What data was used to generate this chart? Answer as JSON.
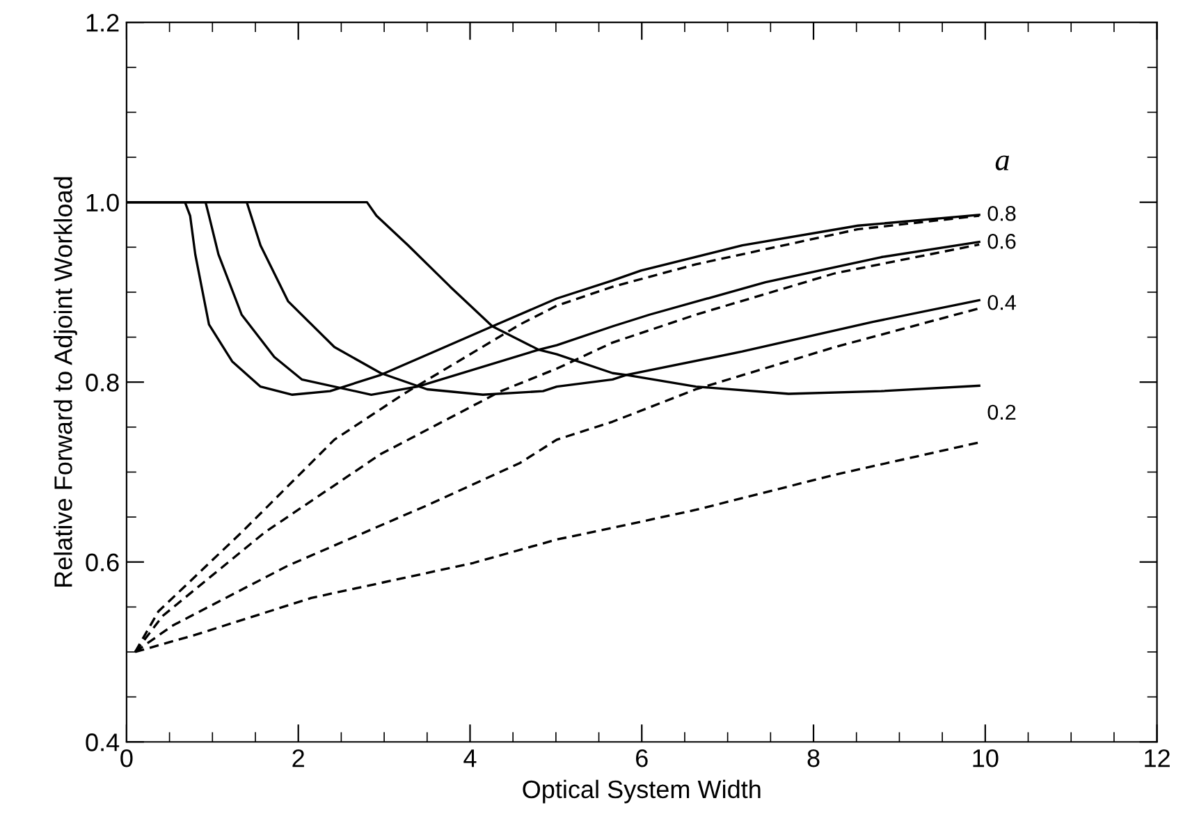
{
  "chart_data": {
    "type": "line",
    "xlabel": "Optical System Width",
    "ylabel": "Relative Forward to Adjoint Workload",
    "xlim": [
      0,
      12
    ],
    "ylim": [
      0.4,
      1.2
    ],
    "xticks": [
      0,
      2,
      4,
      6,
      8,
      10,
      12
    ],
    "yticks": [
      0.4,
      0.6,
      0.8,
      {
        "value": 1.0,
        "label": "1.0"
      },
      1.2
    ],
    "grid": false,
    "legend": false,
    "marker": "none",
    "series": [
      {
        "color": "#000000",
        "line_style": "solid",
        "x": [
          0,
          0.68,
          0.74,
          0.8,
          0.96,
          1.23,
          1.56,
          1.93,
          2.37,
          2.96,
          4.26,
          5.01,
          5.66,
          5.99,
          7.17,
          8.52,
          9.93
        ],
        "values": [
          1.0,
          1.0,
          0.985,
          0.942,
          0.864,
          0.823,
          0.795,
          0.786,
          0.79,
          0.808,
          0.862,
          0.893,
          0.913,
          0.924,
          0.952,
          0.974,
          0.986
        ]
      },
      {
        "color": "#000000",
        "line_style": "solid",
        "x": [
          0,
          0.92,
          0.96,
          1.07,
          1.34,
          1.72,
          2.04,
          2.85,
          3.39,
          4.8,
          5.01,
          5.66,
          6.09,
          7.44,
          8.79,
          9.93
        ],
        "values": [
          1.0,
          1.0,
          0.985,
          0.942,
          0.875,
          0.828,
          0.803,
          0.786,
          0.795,
          0.836,
          0.841,
          0.862,
          0.875,
          0.911,
          0.939,
          0.956
        ]
      },
      {
        "color": "#000000",
        "line_style": "solid",
        "x": [
          0,
          1.4,
          1.45,
          1.56,
          1.88,
          2.42,
          2.96,
          3.5,
          4.15,
          4.85,
          5.01,
          5.66,
          5.82,
          7.17,
          8.69,
          9.93
        ],
        "values": [
          1.0,
          1.0,
          0.985,
          0.952,
          0.89,
          0.839,
          0.81,
          0.792,
          0.786,
          0.79,
          0.795,
          0.803,
          0.808,
          0.834,
          0.867,
          0.891
        ]
      },
      {
        "color": "#000000",
        "line_style": "solid",
        "x": [
          0,
          2.8,
          2.91,
          3.28,
          3.77,
          4.26,
          4.8,
          5.01,
          5.66,
          5.82,
          6.63,
          7.71,
          8.79,
          9.93
        ],
        "values": [
          1.0,
          1.0,
          0.985,
          0.952,
          0.906,
          0.862,
          0.836,
          0.831,
          0.81,
          0.808,
          0.795,
          0.787,
          0.79,
          0.796
        ]
      },
      {
        "color": "#000000",
        "line_style": "dashed",
        "x": [
          0.1,
          0.37,
          1.34,
          2.42,
          3.23,
          4.58,
          5.01,
          5.66,
          6.63,
          8.52,
          9.93
        ],
        "values": [
          0.5,
          0.545,
          0.633,
          0.736,
          0.787,
          0.864,
          0.885,
          0.906,
          0.931,
          0.97,
          0.985
        ]
      },
      {
        "color": "#000000",
        "line_style": "dashed",
        "x": [
          0.1,
          0.42,
          1.61,
          2.96,
          4.36,
          5.01,
          5.66,
          6.63,
          8.25,
          9.93
        ],
        "values": [
          0.5,
          0.54,
          0.633,
          0.72,
          0.79,
          0.815,
          0.844,
          0.875,
          0.921,
          0.953
        ]
      },
      {
        "color": "#000000",
        "line_style": "dashed",
        "x": [
          0.1,
          0.53,
          1.88,
          3.5,
          4.58,
          5.01,
          5.66,
          6.63,
          8.25,
          9.93
        ],
        "values": [
          0.5,
          0.529,
          0.596,
          0.663,
          0.71,
          0.736,
          0.756,
          0.792,
          0.839,
          0.882
        ]
      },
      {
        "color": "#000000",
        "line_style": "dashed",
        "x": [
          0.1,
          0.8,
          2.15,
          4.04,
          5.01,
          5.66,
          6.63,
          8.25,
          9.93
        ],
        "values": [
          0.5,
          0.519,
          0.56,
          0.599,
          0.625,
          0.638,
          0.658,
          0.697,
          0.733
        ]
      }
    ],
    "annotations": [
      "0.8",
      "0.6",
      "0.4",
      "0.2",
      "a"
    ]
  }
}
